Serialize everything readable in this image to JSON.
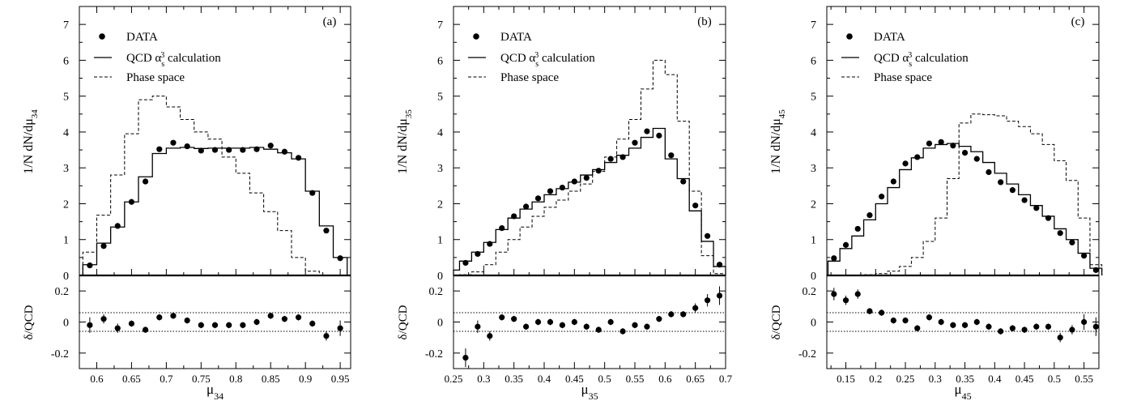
{
  "legend": {
    "data_label": "DATA",
    "qcd_prefix": "QCD α",
    "qcd_sub": "s",
    "qcd_sup": "3",
    "qcd_suffix": " calculation",
    "phase_label": "Phase space"
  },
  "chart_data": [
    {
      "type": "line",
      "panel": "(a)",
      "xlabel_main": "μ",
      "xlabel_sub": "34",
      "ylabel": "1/N dN/dμ",
      "ylabel_sub": "34",
      "ratio_ylabel": "δ/QCD",
      "xlim": [
        0.575,
        0.965
      ],
      "ylim": [
        0,
        7.5
      ],
      "ratio_ylim": [
        -0.3,
        0.3
      ],
      "ratio_band": [
        -0.06,
        0.06
      ],
      "xticks": [
        "0.6",
        "0.65",
        "0.7",
        "0.75",
        "0.8",
        "0.85",
        "0.9",
        "0.95"
      ],
      "xtick_values": [
        0.6,
        0.65,
        0.7,
        0.75,
        0.8,
        0.85,
        0.9,
        0.95
      ],
      "yticks": [
        "0",
        "1",
        "2",
        "3",
        "4",
        "5",
        "6",
        "7"
      ],
      "ratio_yticks": [
        "-0.2",
        "0",
        "0.2"
      ],
      "edges": [
        0.58,
        0.6,
        0.62,
        0.64,
        0.66,
        0.68,
        0.7,
        0.72,
        0.74,
        0.76,
        0.78,
        0.8,
        0.82,
        0.84,
        0.86,
        0.88,
        0.9,
        0.92,
        0.94,
        0.96
      ],
      "qcd": [
        0.3,
        0.9,
        1.35,
        2.05,
        2.75,
        3.4,
        3.55,
        3.57,
        3.54,
        3.55,
        3.55,
        3.55,
        3.57,
        3.52,
        3.42,
        3.25,
        2.35,
        1.38,
        0.5
      ],
      "phase_space": [
        0.65,
        1.68,
        2.8,
        3.95,
        4.9,
        5.0,
        4.7,
        4.35,
        4.0,
        3.8,
        3.3,
        2.85,
        2.3,
        1.78,
        1.25,
        0.5,
        0.12,
        0.0,
        0.0
      ],
      "data_x": [
        0.59,
        0.61,
        0.63,
        0.65,
        0.67,
        0.69,
        0.71,
        0.73,
        0.75,
        0.77,
        0.79,
        0.81,
        0.83,
        0.85,
        0.87,
        0.89,
        0.91,
        0.93,
        0.95
      ],
      "data_y": [
        0.28,
        0.82,
        1.38,
        2.05,
        2.62,
        3.52,
        3.7,
        3.6,
        3.48,
        3.5,
        3.5,
        3.5,
        3.52,
        3.62,
        3.45,
        3.28,
        2.3,
        1.25,
        0.48
      ],
      "data_err": [
        0.05,
        0.05,
        0.05,
        0.06,
        0.06,
        0.07,
        0.07,
        0.07,
        0.07,
        0.07,
        0.07,
        0.07,
        0.07,
        0.07,
        0.07,
        0.07,
        0.06,
        0.05,
        0.05
      ],
      "ratio": [
        -0.02,
        0.02,
        -0.04,
        -0.01,
        -0.05,
        0.03,
        0.04,
        0.01,
        -0.02,
        -0.02,
        -0.02,
        -0.02,
        0.0,
        0.04,
        0.02,
        0.03,
        -0.01,
        -0.09,
        -0.04
      ],
      "ratio_err": [
        0.05,
        0.03,
        0.03,
        0.02,
        0.02,
        0.02,
        0.02,
        0.02,
        0.02,
        0.02,
        0.02,
        0.02,
        0.02,
        0.02,
        0.02,
        0.02,
        0.02,
        0.03,
        0.05
      ]
    },
    {
      "type": "line",
      "panel": "(b)",
      "xlabel_main": "μ",
      "xlabel_sub": "35",
      "ylabel": "1/N dN/dμ",
      "ylabel_sub": "35",
      "ratio_ylabel": "δ/QCD",
      "xlim": [
        0.25,
        0.7
      ],
      "ylim": [
        0,
        7.5
      ],
      "ratio_ylim": [
        -0.3,
        0.3
      ],
      "ratio_band": [
        -0.06,
        0.06
      ],
      "xticks": [
        "0.25",
        "0.3",
        "0.35",
        "0.4",
        "0.45",
        "0.5",
        "0.55",
        "0.6",
        "0.65",
        "0.7"
      ],
      "xtick_values": [
        0.25,
        0.3,
        0.35,
        0.4,
        0.45,
        0.5,
        0.55,
        0.6,
        0.65,
        0.7
      ],
      "yticks": [
        "0",
        "1",
        "2",
        "3",
        "4",
        "5",
        "6",
        "7"
      ],
      "ratio_yticks": [
        "-0.2",
        "0",
        "0.2"
      ],
      "edges": [
        0.25,
        0.26,
        0.28,
        0.3,
        0.32,
        0.34,
        0.36,
        0.38,
        0.4,
        0.42,
        0.44,
        0.46,
        0.48,
        0.5,
        0.52,
        0.54,
        0.56,
        0.58,
        0.6,
        0.62,
        0.64,
        0.66,
        0.68,
        0.7
      ],
      "qcd": [
        0.15,
        0.4,
        0.65,
        0.92,
        1.28,
        1.6,
        1.85,
        2.05,
        2.25,
        2.42,
        2.6,
        2.8,
        2.95,
        3.15,
        3.35,
        3.55,
        3.85,
        4.1,
        3.25,
        2.7,
        1.8,
        0.95,
        0.25
      ],
      "phase_space": [
        0.0,
        0.02,
        0.1,
        0.3,
        0.65,
        1.0,
        1.35,
        1.65,
        1.9,
        2.1,
        2.35,
        2.55,
        2.9,
        3.3,
        3.8,
        4.35,
        5.2,
        6.0,
        5.6,
        4.3,
        2.35,
        0.55,
        0.05
      ],
      "data_x": [
        0.27,
        0.29,
        0.31,
        0.33,
        0.35,
        0.37,
        0.39,
        0.41,
        0.43,
        0.45,
        0.47,
        0.49,
        0.51,
        0.53,
        0.55,
        0.57,
        0.59,
        0.61,
        0.63,
        0.65,
        0.67,
        0.69
      ],
      "data_y": [
        0.35,
        0.6,
        0.88,
        1.32,
        1.65,
        1.92,
        2.15,
        2.35,
        2.45,
        2.62,
        2.72,
        2.92,
        3.25,
        3.3,
        3.7,
        4.02,
        3.9,
        3.35,
        2.62,
        1.95,
        1.1,
        0.3
      ],
      "data_err": [
        0.04,
        0.04,
        0.05,
        0.05,
        0.05,
        0.05,
        0.05,
        0.06,
        0.06,
        0.06,
        0.06,
        0.06,
        0.06,
        0.06,
        0.07,
        0.07,
        0.07,
        0.06,
        0.06,
        0.05,
        0.05,
        0.04
      ],
      "ratio": [
        -0.23,
        -0.03,
        -0.09,
        0.03,
        0.02,
        -0.03,
        0.0,
        0.0,
        -0.02,
        0.0,
        -0.03,
        -0.05,
        0.0,
        -0.06,
        -0.02,
        -0.03,
        0.02,
        0.05,
        0.05,
        0.09,
        0.14,
        0.17
      ],
      "ratio_err": [
        0.06,
        0.04,
        0.03,
        0.02,
        0.02,
        0.02,
        0.02,
        0.02,
        0.02,
        0.02,
        0.02,
        0.02,
        0.02,
        0.02,
        0.02,
        0.02,
        0.02,
        0.02,
        0.02,
        0.03,
        0.04,
        0.06
      ]
    },
    {
      "type": "line",
      "panel": "(c)",
      "xlabel_main": "μ",
      "xlabel_sub": "45",
      "ylabel": "1/N dN/dμ",
      "ylabel_sub": "45",
      "ratio_ylabel": "δ/QCD",
      "xlim": [
        0.118,
        0.575
      ],
      "ylim": [
        0,
        7.5
      ],
      "ratio_ylim": [
        -0.3,
        0.3
      ],
      "ratio_band": [
        -0.06,
        0.06
      ],
      "xticks": [
        "0.15",
        "0.2",
        "0.25",
        "0.3",
        "0.35",
        "0.4",
        "0.45",
        "0.5",
        "0.55"
      ],
      "xtick_values": [
        0.15,
        0.2,
        0.25,
        0.3,
        0.35,
        0.4,
        0.45,
        0.5,
        0.55
      ],
      "yticks": [
        "0",
        "1",
        "2",
        "3",
        "4",
        "5",
        "6",
        "7"
      ],
      "ratio_yticks": [
        "-0.2",
        "0",
        "0.2"
      ],
      "edges": [
        0.12,
        0.14,
        0.16,
        0.18,
        0.2,
        0.22,
        0.24,
        0.26,
        0.28,
        0.3,
        0.32,
        0.34,
        0.36,
        0.38,
        0.4,
        0.42,
        0.44,
        0.46,
        0.48,
        0.5,
        0.52,
        0.54,
        0.56,
        0.58
      ],
      "qcd": [
        0.4,
        0.75,
        1.1,
        1.55,
        2.0,
        2.45,
        2.95,
        3.28,
        3.55,
        3.65,
        3.68,
        3.6,
        3.45,
        3.15,
        2.85,
        2.55,
        2.25,
        1.95,
        1.65,
        1.3,
        1.0,
        0.62,
        0.2
      ],
      "phase_space": [
        0.0,
        0.0,
        0.0,
        0.02,
        0.05,
        0.12,
        0.25,
        0.5,
        0.95,
        1.6,
        2.7,
        4.25,
        4.5,
        4.48,
        4.45,
        4.3,
        4.15,
        3.95,
        3.65,
        3.2,
        2.65,
        1.6,
        0.3
      ],
      "data_x": [
        0.13,
        0.15,
        0.17,
        0.19,
        0.21,
        0.23,
        0.25,
        0.27,
        0.29,
        0.31,
        0.33,
        0.35,
        0.37,
        0.39,
        0.41,
        0.43,
        0.45,
        0.47,
        0.49,
        0.51,
        0.53,
        0.55,
        0.57
      ],
      "data_y": [
        0.48,
        0.85,
        1.3,
        1.68,
        2.2,
        2.62,
        3.12,
        3.3,
        3.68,
        3.72,
        3.62,
        3.42,
        3.25,
        2.88,
        2.6,
        2.38,
        2.1,
        1.88,
        1.6,
        1.18,
        0.92,
        0.55,
        0.15
      ],
      "data_err": [
        0.04,
        0.05,
        0.05,
        0.05,
        0.06,
        0.06,
        0.06,
        0.07,
        0.07,
        0.07,
        0.07,
        0.07,
        0.07,
        0.06,
        0.06,
        0.06,
        0.06,
        0.05,
        0.05,
        0.05,
        0.05,
        0.04,
        0.04
      ],
      "ratio": [
        0.18,
        0.14,
        0.18,
        0.07,
        0.06,
        0.01,
        0.01,
        -0.04,
        0.03,
        0.0,
        -0.02,
        -0.02,
        0.0,
        -0.03,
        -0.06,
        -0.04,
        -0.05,
        -0.03,
        -0.03,
        -0.1,
        -0.05,
        0.0,
        -0.03
      ],
      "ratio_err": [
        0.04,
        0.03,
        0.03,
        0.02,
        0.02,
        0.02,
        0.02,
        0.02,
        0.02,
        0.02,
        0.02,
        0.02,
        0.02,
        0.02,
        0.02,
        0.02,
        0.02,
        0.02,
        0.02,
        0.03,
        0.03,
        0.05,
        0.06
      ]
    }
  ]
}
